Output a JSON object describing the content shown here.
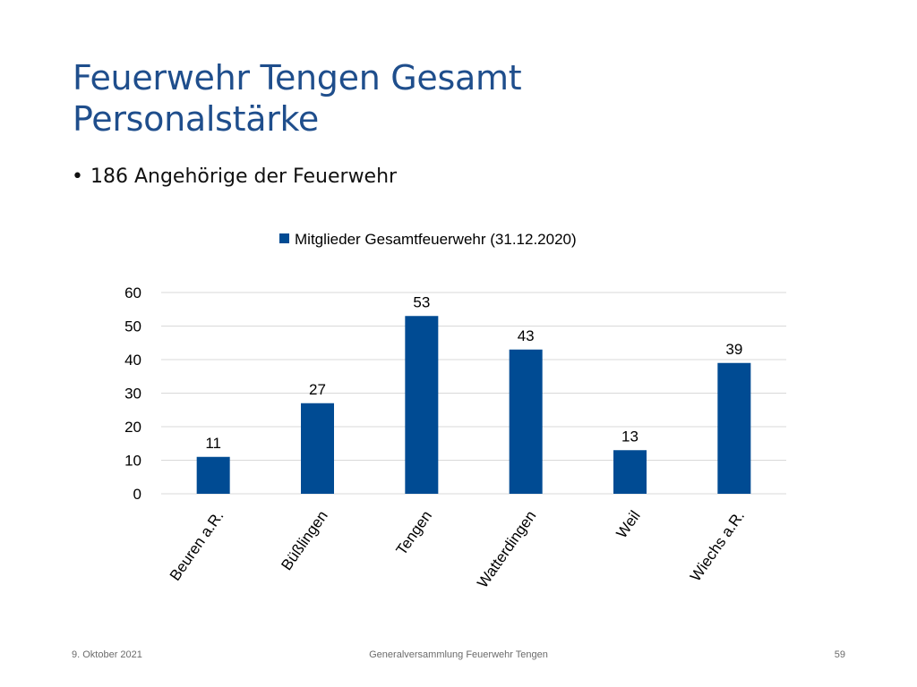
{
  "slide": {
    "title_line1": "Feuerwehr Tengen Gesamt",
    "title_line2": "Personalstärke",
    "bullet": "186 Angehörige der Feuerwehr"
  },
  "footer": {
    "date": "9. Oktober 2021",
    "center": "Generalversammlung Feuerwehr Tengen",
    "page": "59"
  },
  "colors": {
    "title": "#1f4e8c",
    "bar": "#004b93",
    "grid": "#d9d9d9"
  },
  "chart_data": {
    "type": "bar",
    "categories": [
      "Beuren a.R.",
      "Büßlingen",
      "Tengen",
      "Watterdingen",
      "Weil",
      "Wiechs a.R."
    ],
    "series": [
      {
        "name": "Mitglieder Gesamtfeuerwehr (31.12.2020)",
        "values": [
          11,
          27,
          53,
          43,
          13,
          39
        ]
      }
    ],
    "ylim": [
      0,
      60
    ],
    "yticks": [
      0,
      10,
      20,
      30,
      40,
      50,
      60
    ],
    "grid": true,
    "legend": "top",
    "data_labels": true,
    "xlabel_rotation": "rotated diagonally"
  }
}
